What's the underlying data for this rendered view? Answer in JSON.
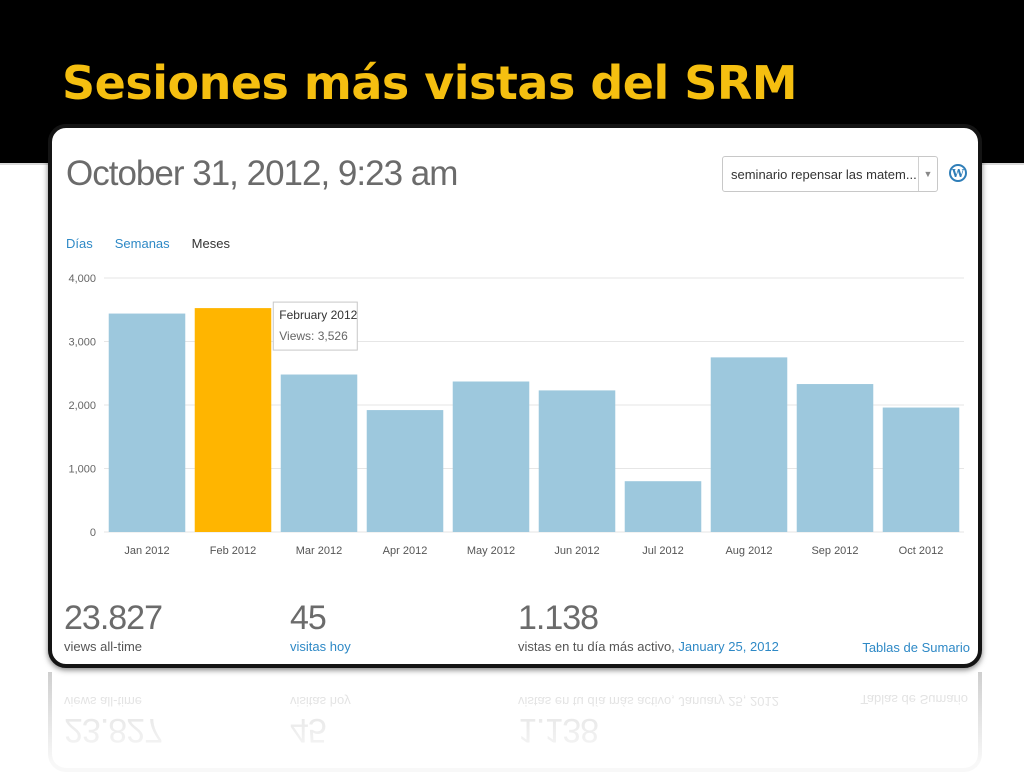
{
  "slide": {
    "title": "Sesiones más vistas del SRM"
  },
  "header": {
    "datetime": "October 31, 2012, 9:23 am"
  },
  "blog_selector": {
    "value": "seminario repensar las matem...",
    "arrow_icon": "chevron-down-icon",
    "logo_icon": "wordpress-logo-icon"
  },
  "tabs": [
    {
      "label": "Días",
      "active": false
    },
    {
      "label": "Semanas",
      "active": false
    },
    {
      "label": "Meses",
      "active": true
    }
  ],
  "chart_data": {
    "type": "bar",
    "categories": [
      "Jan 2012",
      "Feb 2012",
      "Mar 2012",
      "Apr 2012",
      "May 2012",
      "Jun 2012",
      "Jul 2012",
      "Aug 2012",
      "Sep 2012",
      "Oct 2012"
    ],
    "values": [
      3440,
      3526,
      2480,
      1920,
      2370,
      2230,
      800,
      2750,
      2330,
      1960
    ],
    "ylim": [
      0,
      4000
    ],
    "yticks": [
      0,
      1000,
      2000,
      3000,
      4000
    ],
    "ytick_labels": [
      "0",
      "1,000",
      "2,000",
      "3,000",
      "4,000"
    ],
    "grid": true,
    "highlight_index": 1,
    "bar_color": "#9dc8dd",
    "highlight_color": "#ffb500",
    "tooltip": {
      "title": "February 2012",
      "text": "Views: 3,526"
    }
  },
  "stats": {
    "all_time": {
      "value": "23.827",
      "label": "views all-time"
    },
    "today": {
      "value": "45",
      "label": "visitas hoy"
    },
    "best_day": {
      "value": "1.138",
      "label": "vistas en tu día más activo,",
      "link": "January 25, 2012"
    },
    "summary_link": "Tablas de Sumario"
  }
}
